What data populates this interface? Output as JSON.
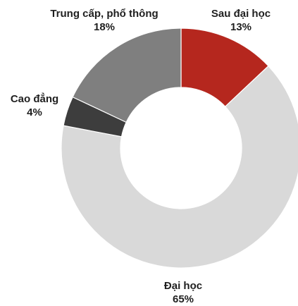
{
  "chart_data": {
    "type": "pie",
    "variant": "donut",
    "slices": [
      {
        "label": "Sau đại học",
        "value": 13,
        "value_label": "13%",
        "color": "#b5271e"
      },
      {
        "label": "Đại học",
        "value": 65,
        "value_label": "65%",
        "color": "#d9d9d9"
      },
      {
        "label": "Cao đẳng",
        "value": 4,
        "value_label": "4%",
        "color": "#3d3d3d"
      },
      {
        "label": "Trung cấp, phổ thông",
        "value": 18,
        "value_label": "18%",
        "color": "#7f7f7f"
      }
    ],
    "start": "12 o'clock",
    "direction": "clockwise",
    "legend": "none"
  }
}
